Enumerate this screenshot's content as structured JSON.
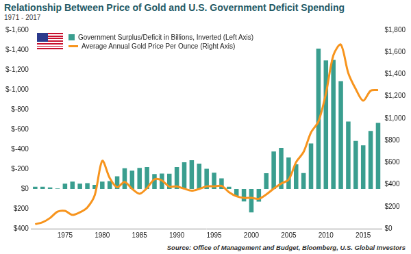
{
  "chart_data": {
    "type": "bar",
    "title": "Relationship Between Price of Gold and U.S. Government Deficit Spending",
    "subtitle": "1971 - 2017",
    "source": "Source: Office of Management and Budget, Bloomberg, U.S. Global Investors",
    "categories": [
      null,
      null,
      null,
      null,
      "1975",
      null,
      null,
      null,
      null,
      "1980",
      null,
      null,
      null,
      null,
      "1985",
      null,
      null,
      null,
      null,
      "1990",
      null,
      null,
      null,
      null,
      "1995",
      null,
      null,
      null,
      null,
      "2000",
      null,
      null,
      null,
      null,
      "2005",
      null,
      null,
      null,
      null,
      "2010",
      null,
      null,
      null,
      null,
      "2015",
      null,
      null
    ],
    "series": [
      {
        "name": "Government Surplus/Deficit in Billions, Inverted (Left Axis)",
        "type": "bar",
        "color": "#3a9e8f",
        "values": [
          -23,
          -23,
          -15,
          -6,
          -53,
          -74,
          -54,
          -59,
          -41,
          -74,
          -79,
          -128,
          -208,
          -185,
          -212,
          -221,
          -150,
          -155,
          -153,
          -221,
          -269,
          -290,
          -255,
          -203,
          -164,
          -107,
          -22,
          69,
          126,
          236,
          128,
          -158,
          -378,
          -413,
          -318,
          -248,
          -161,
          -459,
          -1413,
          -1294,
          -1300,
          -1087,
          -680,
          -485,
          -439,
          -585,
          -666
        ]
      },
      {
        "name": "Average Annual Gold Price Per Ounce (Right Axis)",
        "type": "line",
        "color": "#f7941d",
        "axis": "y2",
        "values": [
          41,
          58,
          97,
          154,
          161,
          125,
          148,
          193,
          306,
          615,
          460,
          376,
          424,
          361,
          317,
          368,
          447,
          437,
          381,
          383,
          362,
          344,
          360,
          384,
          384,
          388,
          331,
          294,
          279,
          279,
          271,
          310,
          363,
          409,
          444,
          603,
          695,
          872,
          972,
          1225,
          1572,
          1669,
          1411,
          1266,
          1160,
          1251,
          1257
        ]
      }
    ],
    "ylim": [
      400,
      -1600
    ],
    "yticks": [
      {
        "value": -1600,
        "label": "$-1,600"
      },
      {
        "value": -1400,
        "label": "$-1,400"
      },
      {
        "value": -1200,
        "label": "$-1,200"
      },
      {
        "value": -1000,
        "label": "$-1,000"
      },
      {
        "value": -800,
        "label": "$-800"
      },
      {
        "value": -600,
        "label": "$-600"
      },
      {
        "value": -400,
        "label": "$-400"
      },
      {
        "value": -200,
        "label": "$-200"
      },
      {
        "value": 0,
        "label": "$0"
      },
      {
        "value": 200,
        "label": "$200"
      },
      {
        "value": 400,
        "label": "$400"
      }
    ],
    "y2lim": [
      0,
      1800
    ],
    "y2ticks": [
      {
        "value": 0,
        "label": "$0"
      },
      {
        "value": 200,
        "label": "$200"
      },
      {
        "value": 400,
        "label": "$400"
      },
      {
        "value": 600,
        "label": "$600"
      },
      {
        "value": 800,
        "label": "$800"
      },
      {
        "value": 1000,
        "label": "$1,000"
      },
      {
        "value": 1200,
        "label": "$1,200"
      },
      {
        "value": 1400,
        "label": "$1,400"
      },
      {
        "value": 1600,
        "label": "$1,600"
      },
      {
        "value": 1800,
        "label": "$1,800"
      }
    ],
    "grid": false,
    "legend": "upper left"
  }
}
